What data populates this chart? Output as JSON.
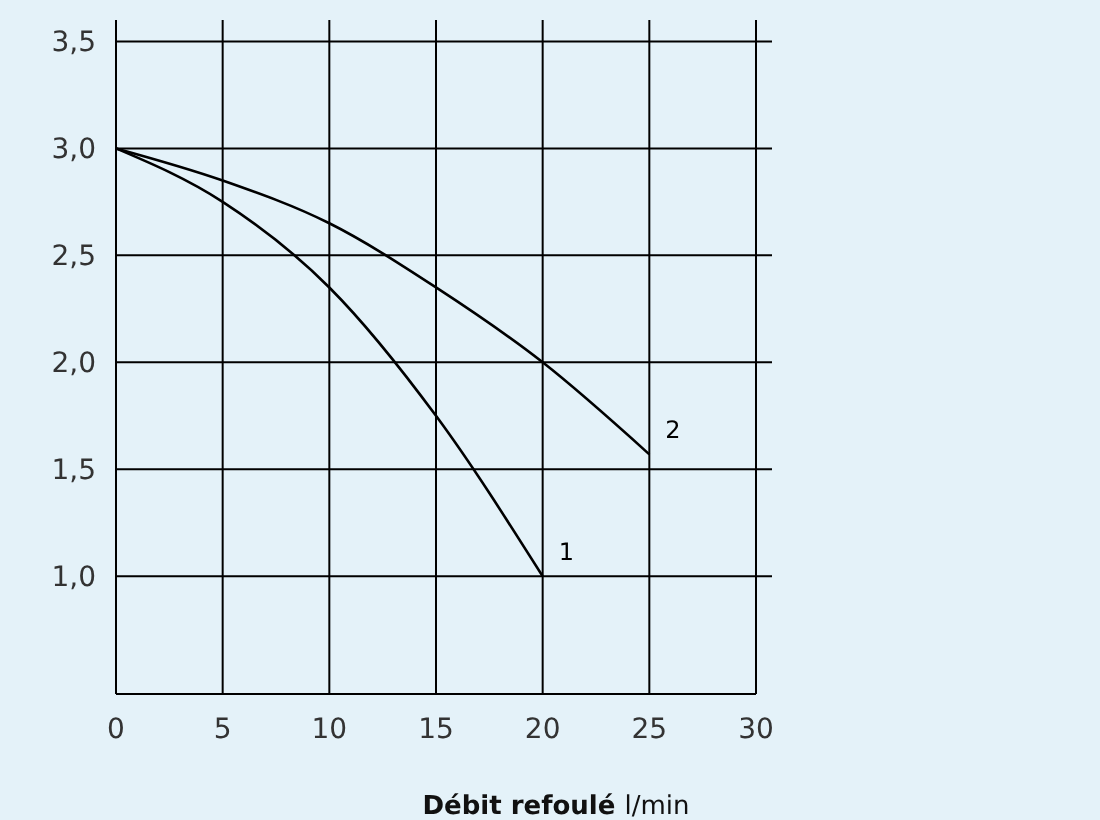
{
  "chart_data": {
    "type": "line",
    "xlabel": "Débit refoulé l/min",
    "x": [
      0,
      5,
      10,
      15,
      20,
      25
    ],
    "series": [
      {
        "color": "#000000",
        "values": [
          3.0,
          2.75,
          2.35,
          1.75,
          1.0,
          null
        ]
      },
      {
        "color": "#000000",
        "values": [
          3.0,
          2.85,
          2.65,
          2.35,
          2.0,
          1.57
        ]
      }
    ],
    "annotations": [
      {
        "text": "1",
        "x": 20,
        "y": 1.0
      },
      {
        "text": "2",
        "x": 25,
        "y": 1.57
      }
    ],
    "xlim": [
      0,
      30
    ],
    "xticks": [
      0,
      5,
      10,
      15,
      20,
      25,
      30
    ],
    "ylim": [
      0.45,
      3.6
    ],
    "yticks": [
      {
        "value": 1,
        "label": "1,0"
      },
      {
        "value": 1.5,
        "label": "1,5"
      },
      {
        "value": 2,
        "label": "2,0"
      },
      {
        "value": 2.5,
        "label": "2,5"
      },
      {
        "value": 3,
        "label": "3,0"
      },
      {
        "value": 3.5,
        "label": "3,5"
      }
    ],
    "grid": true,
    "marker": "none",
    "line_style": "solid"
  }
}
